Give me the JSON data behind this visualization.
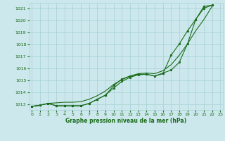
{
  "bg_color": "#cce8ec",
  "grid_color": "#aad4d8",
  "line_color": "#1a6b1a",
  "xlabel": "Graphe pression niveau de la mer (hPa)",
  "ylim": [
    1012.5,
    1021.5
  ],
  "xlim": [
    -0.3,
    23.3
  ],
  "yticks": [
    1013,
    1014,
    1015,
    1016,
    1017,
    1018,
    1019,
    1020,
    1021
  ],
  "xticks": [
    0,
    1,
    2,
    3,
    4,
    5,
    6,
    7,
    8,
    9,
    10,
    11,
    12,
    13,
    14,
    15,
    16,
    17,
    18,
    19,
    20,
    21,
    22,
    23
  ],
  "line1_x": [
    0,
    1,
    2,
    3,
    4,
    5,
    6,
    7,
    8,
    9,
    10,
    11,
    12,
    13,
    14,
    15,
    16,
    17,
    18,
    19,
    20,
    21,
    22
  ],
  "line1_y": [
    1012.8,
    1012.9,
    1013.05,
    1013.1,
    1013.15,
    1013.15,
    1013.2,
    1013.4,
    1013.7,
    1014.1,
    1014.65,
    1015.05,
    1015.35,
    1015.55,
    1015.6,
    1015.55,
    1015.8,
    1016.3,
    1017.1,
    1018.05,
    1019.15,
    1020.1,
    1021.2
  ],
  "line2_x": [
    0,
    1,
    2,
    3,
    4,
    5,
    6,
    7,
    8,
    9,
    10,
    11,
    12,
    13,
    14,
    15,
    16,
    17,
    18,
    19,
    20,
    21,
    22
  ],
  "line2_y": [
    1012.8,
    1012.9,
    1013.05,
    1012.85,
    1012.85,
    1012.85,
    1012.85,
    1013.05,
    1013.4,
    1013.75,
    1014.35,
    1014.9,
    1015.25,
    1015.45,
    1015.5,
    1015.35,
    1015.6,
    1015.85,
    1016.5,
    1018.05,
    1020.1,
    1021.2,
    1021.3
  ],
  "line3_x": [
    0,
    1,
    2,
    3,
    4,
    5,
    6,
    7,
    8,
    9,
    10,
    11,
    12,
    13,
    14,
    15,
    16,
    17,
    18,
    19,
    20,
    21,
    22
  ],
  "line3_y": [
    1012.8,
    1012.9,
    1013.05,
    1012.85,
    1012.85,
    1012.85,
    1012.85,
    1013.05,
    1013.4,
    1013.75,
    1014.55,
    1015.1,
    1015.35,
    1015.5,
    1015.5,
    1015.35,
    1015.55,
    1017.1,
    1018.05,
    1019.15,
    1020.1,
    1021.05,
    1021.3
  ]
}
